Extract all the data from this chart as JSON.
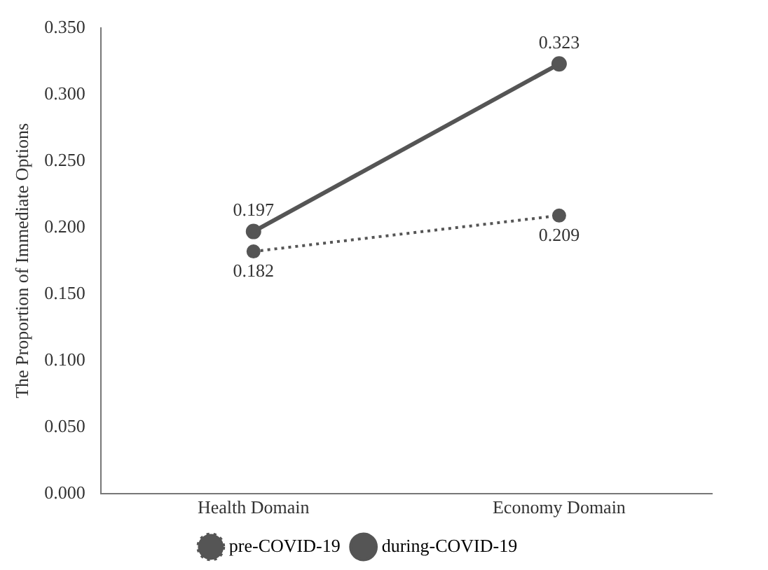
{
  "chart_data": {
    "type": "line",
    "ylabel": "The Proportion of Immediate Options",
    "categories": [
      "Health Domain",
      "Economy Domain"
    ],
    "series": [
      {
        "name": "pre-COVID-19",
        "color": "#555555",
        "values": [
          0.182,
          0.209
        ],
        "line_style": "dotted"
      },
      {
        "name": "during-COVID-19",
        "color": "#555555",
        "values": [
          0.197,
          0.323
        ],
        "line_style": "solid"
      }
    ],
    "ylim": [
      0,
      0.35
    ],
    "yticks": [
      {
        "value": 0,
        "label": "0.000"
      },
      {
        "value": 0.05,
        "label": "0.050"
      },
      {
        "value": 0.1,
        "label": "0.100"
      },
      {
        "value": 0.15,
        "label": "0.150"
      },
      {
        "value": 0.2,
        "label": "0.200"
      },
      {
        "value": 0.25,
        "label": "0.250"
      },
      {
        "value": 0.3,
        "label": "0.300"
      },
      {
        "value": 0.35,
        "label": "0.350"
      }
    ],
    "grid": false,
    "legend": "bottom",
    "marker": "circle",
    "data_labels": true
  }
}
